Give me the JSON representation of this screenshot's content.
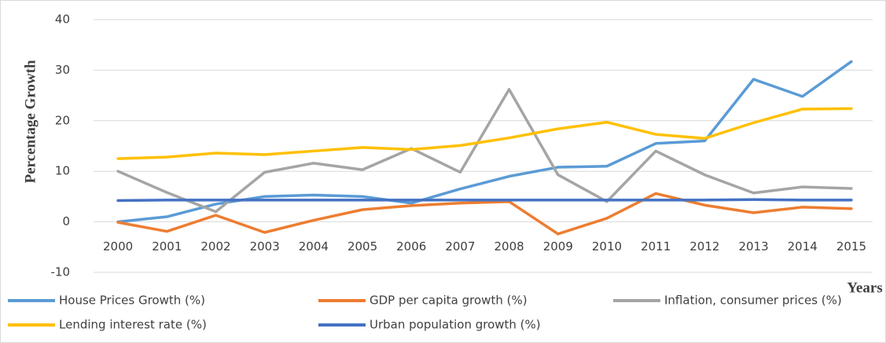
{
  "chart_data": {
    "type": "line",
    "y_label": "Percentage Growth",
    "x_label": "Years",
    "categories": [
      "2000",
      "2001",
      "2002",
      "2003",
      "2004",
      "2005",
      "2006",
      "2007",
      "2008",
      "2009",
      "2010",
      "2011",
      "2012",
      "2013",
      "2014",
      "2015"
    ],
    "series": [
      {
        "name": "House Prices Growth (%)",
        "color": "#5b9bd5",
        "values": [
          0,
          1,
          3.5,
          5,
          5.3,
          5,
          3.7,
          6.5,
          9,
          10.8,
          11,
          15.5,
          16,
          28.2,
          24.8,
          31.7
        ]
      },
      {
        "name": "GDP per capita growth (%)",
        "color": "#ed7d31",
        "values": [
          -0.1,
          -1.9,
          1.3,
          -2.1,
          0.3,
          2.4,
          3.2,
          3.7,
          4,
          -2.4,
          0.7,
          5.6,
          3.3,
          1.8,
          2.9,
          2.6
        ]
      },
      {
        "name": "Inflation, consumer prices (%)",
        "color": "#a5a5a5",
        "values": [
          10,
          5.8,
          2,
          9.8,
          11.6,
          10.3,
          14.5,
          9.8,
          26.2,
          9.3,
          4,
          14,
          9.3,
          5.7,
          6.9,
          6.6
        ]
      },
      {
        "name": "Lending interest rate (%)",
        "color": "#ffc000",
        "values": [
          12.5,
          12.8,
          13.6,
          13.3,
          14,
          14.7,
          14.3,
          15.1,
          16.6,
          18.4,
          19.7,
          17.3,
          16.5,
          19.6,
          22.3,
          22.4
        ]
      },
      {
        "name": "Urban population growth (%)",
        "color": "#4472c4",
        "values": [
          4.2,
          4.3,
          4.3,
          4.3,
          4.3,
          4.3,
          4.3,
          4.3,
          4.3,
          4.3,
          4.3,
          4.3,
          4.3,
          4.4,
          4.3,
          4.3
        ]
      }
    ],
    "ylim": [
      -10,
      40
    ],
    "yticks": [
      -10,
      0,
      10,
      20,
      30,
      40
    ],
    "grid": true,
    "legend": "bottom"
  }
}
